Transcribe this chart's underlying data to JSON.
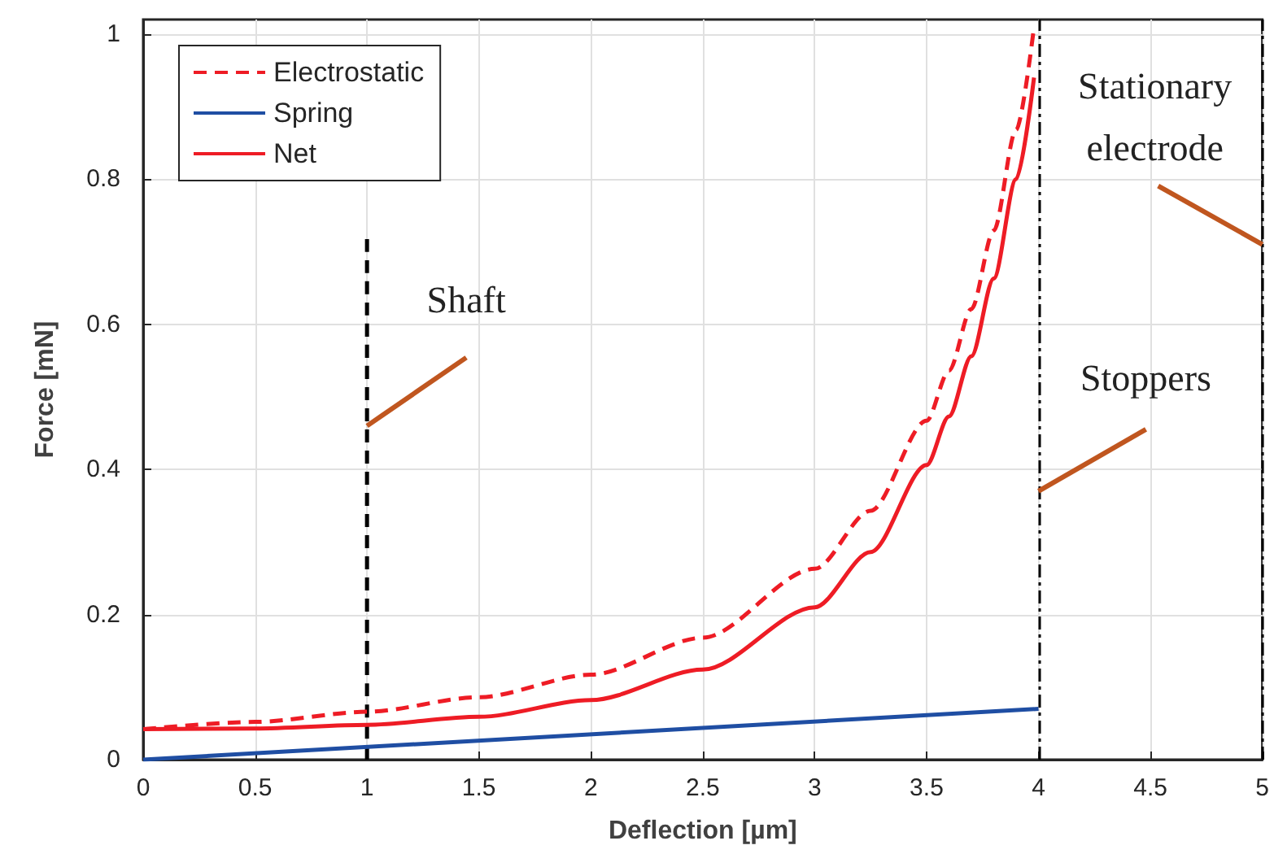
{
  "chart_data": {
    "type": "line",
    "xlabel": "Deflection [µm]",
    "ylabel": "Force [mN]",
    "x": [
      0,
      0.5,
      1,
      1.5,
      2,
      2.5,
      3,
      3.25,
      3.5,
      3.6,
      3.7,
      3.8,
      3.9,
      3.98
    ],
    "series": [
      {
        "name": "Electrostatic",
        "color": "#ee1c25",
        "line_style": "dashed",
        "values": [
          0.042,
          0.052,
          0.066,
          0.086,
          0.117,
          0.168,
          0.263,
          0.343,
          0.467,
          0.536,
          0.621,
          0.729,
          0.868,
          1.01
        ]
      },
      {
        "name": "Spring",
        "color": "#1f4ea3",
        "line_style": "solid",
        "x": [
          0,
          4
        ],
        "values": [
          0,
          0.07
        ]
      },
      {
        "name": "Net",
        "color": "#ee1c25",
        "line_style": "solid",
        "values": [
          0.042,
          0.043,
          0.048,
          0.059,
          0.082,
          0.124,
          0.21,
          0.286,
          0.406,
          0.473,
          0.556,
          0.663,
          0.8,
          0.94
        ]
      },
      {
        "color": "#000000",
        "line_style": "dashed",
        "x": [
          1,
          1
        ],
        "values": [
          0,
          0.72
        ]
      }
    ],
    "ref_lines": [
      {
        "axis": "x",
        "value": 4,
        "color": "#000000",
        "line_style": "dashed"
      },
      {
        "axis": "x",
        "value": 5,
        "color": "#000000",
        "line_style": "dashed"
      }
    ],
    "annotations": [
      {
        "text": "Shaft",
        "x": 1,
        "y": 0.46
      },
      {
        "text": "Stoppers",
        "x": 4,
        "y": 0.37
      },
      {
        "text": "Stationary\nelectrode",
        "x": 5,
        "y": 0.71
      }
    ],
    "xlim": [
      0,
      5
    ],
    "xticks": [
      0,
      0.5,
      1,
      1.5,
      2,
      2.5,
      3,
      3.5,
      4,
      4.5,
      5
    ],
    "ylim": [
      0,
      1.02
    ],
    "yticks": [
      0,
      0.2,
      0.4,
      0.6,
      0.8,
      1
    ],
    "grid": true,
    "legend": "top left",
    "marker": "none"
  }
}
